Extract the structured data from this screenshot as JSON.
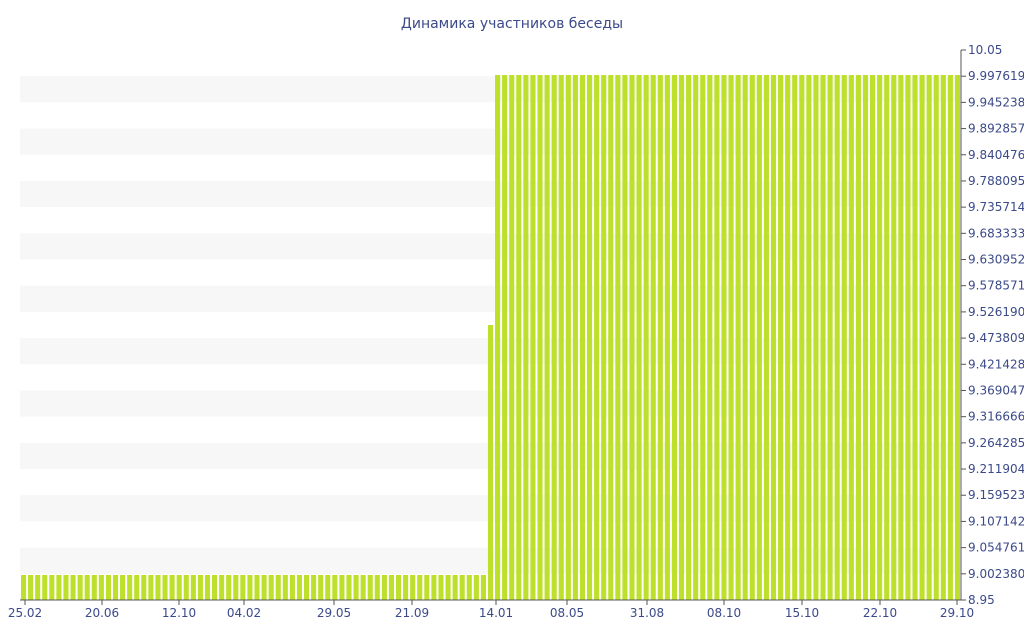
{
  "chart_data": {
    "type": "bar",
    "title": "Динамика участников беседы",
    "xlabel": "",
    "ylabel": "",
    "y_axis_side": "right",
    "ylim": [
      8.95,
      10.05
    ],
    "y_tick_labels": [
      "10.05",
      "9.997619",
      "9.945238",
      "9.892857",
      "9.840476",
      "9.788095",
      "9.735714",
      "9.683333",
      "9.630952",
      "9.578571",
      "9.526190",
      "9.473809",
      "9.421428",
      "9.369047",
      "9.316666",
      "9.264285",
      "9.211904",
      "9.159523",
      "9.107142",
      "9.054761",
      "9.002380",
      "8.95"
    ],
    "x_tick_labels": [
      "25.02",
      "20.06",
      "12.10",
      "04.02",
      "29.05",
      "21.09",
      "14.01",
      "08.05",
      "31.08",
      "08.10",
      "15.10",
      "22.10",
      "29.10"
    ],
    "grid": "horizontal alternating bands",
    "legend": "none",
    "series": [
      {
        "values": [
          9,
          9,
          9,
          9,
          9,
          9,
          9,
          9,
          9,
          9,
          9,
          9,
          9,
          9,
          9,
          9,
          9,
          9,
          9,
          9,
          9,
          9,
          9,
          9,
          9,
          9,
          9,
          9,
          9,
          9,
          9,
          9,
          9,
          9,
          9,
          9,
          9,
          9,
          9,
          9,
          9,
          9,
          9,
          9,
          9,
          9,
          9,
          9,
          9,
          9,
          9,
          9,
          9,
          9,
          9,
          9,
          9,
          9,
          9,
          9,
          9,
          9,
          9,
          9,
          9,
          9,
          9.5,
          10,
          10,
          10,
          10,
          10,
          10,
          10,
          10,
          10,
          10,
          10,
          10,
          10,
          10,
          10,
          10,
          10,
          10,
          10,
          10,
          10,
          10,
          10,
          10,
          10,
          10,
          10,
          10,
          10,
          10,
          10,
          10,
          10,
          10,
          10,
          10,
          10,
          10,
          10,
          10,
          10,
          10,
          10,
          10,
          10,
          10,
          10,
          10,
          10,
          10,
          10,
          10,
          10,
          10,
          10,
          10,
          10,
          10,
          10,
          10,
          10,
          10,
          10,
          10,
          10,
          10
        ]
      }
    ]
  },
  "colors": {
    "bar": "#bde02b",
    "band": "#f7f7f7",
    "text": "#3b4a8a",
    "axis": "#555555"
  }
}
